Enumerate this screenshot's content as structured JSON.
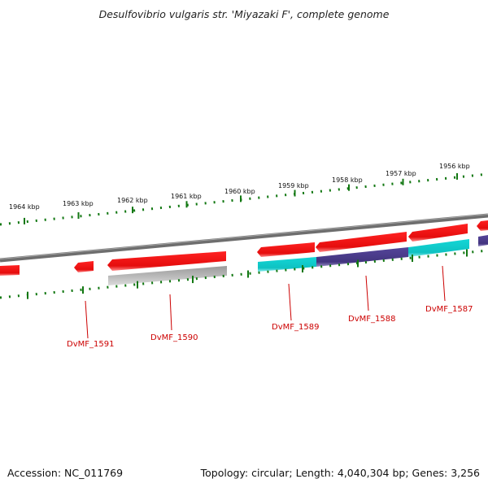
{
  "title": "Desulfovibrio vulgaris str. 'Miyazaki F', complete genome",
  "footer": {
    "accession": "Accession: NC_011769",
    "summary": "Topology: circular; Length: 4,040,304 bp; Genes: 3,256"
  },
  "colors": {
    "forward_gene": "#ee1111",
    "forward_gene_light": "#ff7777",
    "cds_cyan": "#11cccc",
    "cds_purple": "#4a3a8c",
    "cds_gray": "#aaaaaa",
    "backbone": "#777777",
    "tick": "#117711",
    "gene_label": "#cc0000"
  },
  "scale": {
    "unit": "kbp",
    "labels": [
      "1964 kbp",
      "1963 kbp",
      "1962 kbp",
      "1961 kbp",
      "1960 kbp",
      "1959 kbp",
      "1958 kbp",
      "1957 kbp",
      "1956 kbp"
    ]
  },
  "genes": [
    {
      "id": "DvMF_1591"
    },
    {
      "id": "DvMF_1590"
    },
    {
      "id": "DvMF_1589"
    },
    {
      "id": "DvMF_1588"
    },
    {
      "id": "DvMF_1587"
    }
  ]
}
